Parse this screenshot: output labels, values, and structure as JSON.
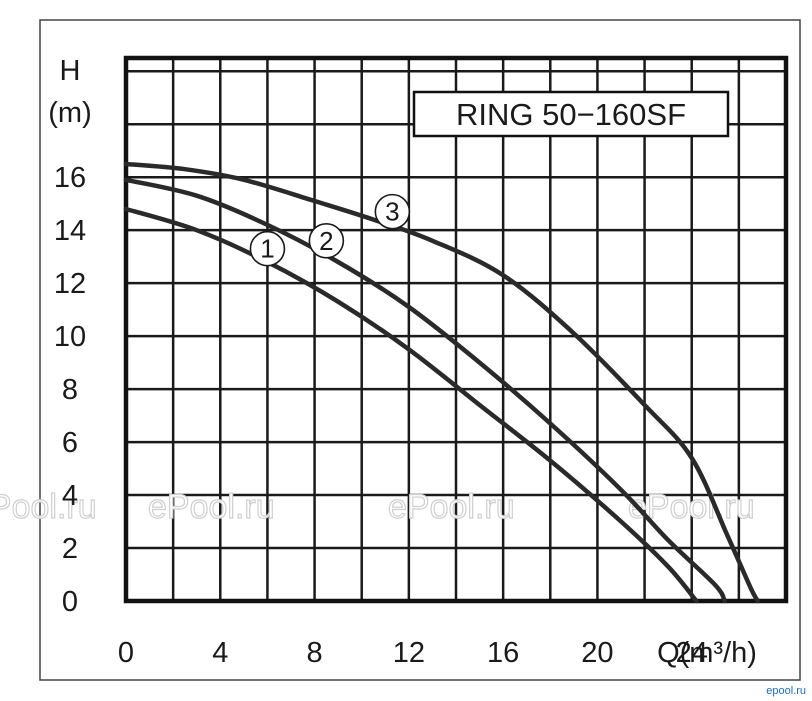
{
  "chart_data": {
    "type": "line",
    "title": "RING 50−160SF",
    "xlabel": "Q(m³/h)",
    "ylabel_line1": "H",
    "ylabel_line2": "(m)",
    "xlim": [
      0,
      28
    ],
    "ylim": [
      0,
      20.5
    ],
    "x_ticks": [
      "0",
      "4",
      "8",
      "12",
      "16",
      "20",
      "24"
    ],
    "x_tick_values": [
      0,
      4,
      8,
      12,
      16,
      20,
      24
    ],
    "y_ticks": [
      "0",
      "2",
      "4",
      "6",
      "8",
      "10",
      "12",
      "14",
      "16"
    ],
    "y_tick_values": [
      0,
      2,
      4,
      6,
      8,
      10,
      12,
      14,
      16
    ],
    "grid": true,
    "series": [
      {
        "name": "1",
        "label_at": [
          6.0,
          13.3
        ],
        "points": [
          [
            0,
            14.8
          ],
          [
            3,
            14.0
          ],
          [
            6,
            12.8
          ],
          [
            9,
            11.3
          ],
          [
            12,
            9.5
          ],
          [
            15,
            7.4
          ],
          [
            18,
            5.3
          ],
          [
            21,
            3.0
          ],
          [
            23,
            1.3
          ],
          [
            24.2,
            0
          ]
        ]
      },
      {
        "name": "2",
        "label_at": [
          8.5,
          13.6
        ],
        "points": [
          [
            0,
            15.9
          ],
          [
            3,
            15.3
          ],
          [
            6,
            14.2
          ],
          [
            9,
            12.8
          ],
          [
            12,
            11.1
          ],
          [
            15,
            9.0
          ],
          [
            18,
            6.7
          ],
          [
            21,
            4.2
          ],
          [
            23,
            2.3
          ],
          [
            25.0,
            0.6
          ],
          [
            25.4,
            0
          ]
        ]
      },
      {
        "name": "3",
        "label_at": [
          11.3,
          14.7
        ],
        "points": [
          [
            0,
            16.5
          ],
          [
            2.5,
            16.3
          ],
          [
            5,
            15.9
          ],
          [
            8,
            15.1
          ],
          [
            10.5,
            14.4
          ],
          [
            13,
            13.6
          ],
          [
            16,
            12.3
          ],
          [
            19,
            10.1
          ],
          [
            22,
            7.4
          ],
          [
            24,
            5.4
          ],
          [
            25.5,
            2.5
          ],
          [
            26.5,
            0.5
          ],
          [
            26.8,
            0
          ]
        ]
      }
    ]
  },
  "watermarks": [
    "ePool.ru",
    "ePool.ru",
    "ePool.ru",
    "ePool.ru"
  ],
  "footer_mark": "epool.ru"
}
